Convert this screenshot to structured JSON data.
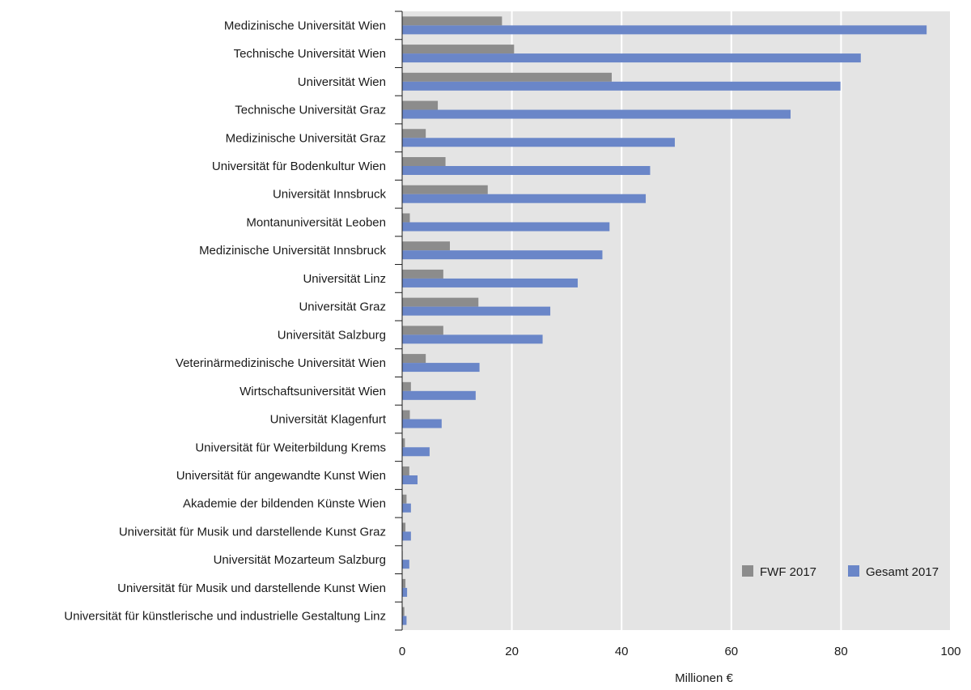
{
  "chart_data": {
    "type": "bar",
    "orientation": "horizontal",
    "title": "",
    "xlabel": "Millionen €",
    "ylabel": "",
    "xlim": [
      0,
      100
    ],
    "x_ticks": [
      "0",
      "20",
      "40",
      "60",
      "80",
      "100"
    ],
    "grid": "vertical",
    "legend_position": "bottom-right",
    "categories": [
      "Medizinische Universität Wien",
      "Technische Universität Wien",
      "Universität Wien",
      "Technische Universität Graz",
      "Medizinische Universität Graz",
      "Universität für Bodenkultur Wien",
      "Universität Innsbruck",
      "Montanuniversität Leoben",
      "Medizinische Universität Innsbruck",
      "Universität Linz",
      "Universität Graz",
      "Universität Salzburg",
      "Veterinärmedizinische Universität Wien",
      "Wirtschaftsuniversität Wien",
      "Universität Klagenfurt",
      "Universität für Weiterbildung Krems",
      "Universität für angewandte Kunst Wien",
      "Akademie der bildenden Künste Wien",
      "Universität für Musik und darstellende Kunst Graz",
      "Universität Mozarteum Salzburg",
      "Universität für Musik und darstellende Kunst Wien",
      "Universität für künstlerische und industrielle Gestaltung Linz"
    ],
    "series": [
      {
        "name": "FWF 2017",
        "color": "#8c8c8c",
        "values": [
          18.2,
          20.4,
          38.2,
          6.5,
          4.3,
          7.9,
          15.6,
          1.4,
          8.7,
          7.5,
          13.9,
          7.5,
          4.3,
          1.6,
          1.4,
          0.5,
          1.3,
          0.8,
          0.6,
          0.1,
          0.6,
          0.4
        ]
      },
      {
        "name": "Gesamt 2017",
        "color": "#6a86c8",
        "values": [
          95.6,
          83.6,
          79.9,
          70.8,
          49.7,
          45.2,
          44.4,
          37.8,
          36.5,
          32.0,
          27.0,
          25.6,
          14.1,
          13.4,
          7.2,
          5.0,
          2.8,
          1.6,
          1.6,
          1.3,
          0.9,
          0.8
        ]
      }
    ]
  },
  "colors": {
    "plot_background": "#e4e4e4",
    "gridline": "#ffffff",
    "axis": "#1a1a1a"
  }
}
